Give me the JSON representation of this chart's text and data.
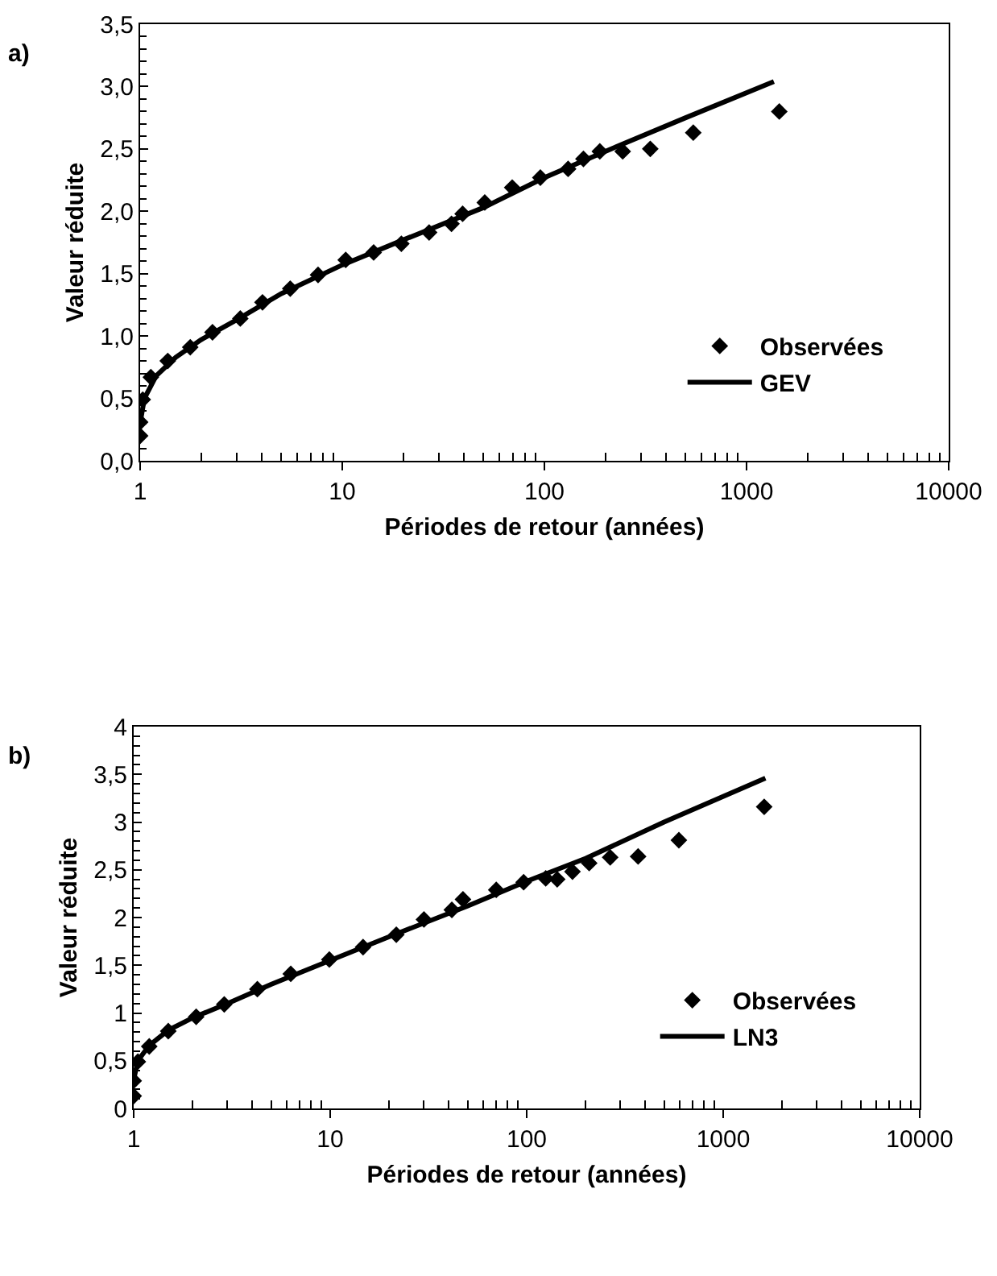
{
  "chart_data": [
    {
      "type": "scatter",
      "title": "a)",
      "xlabel": "Périodes de retour (années)",
      "ylabel": "Valeur réduite",
      "log": "x",
      "legend": "bottom right",
      "xlim": [
        1,
        10000
      ],
      "xticks": [
        1,
        10,
        100,
        1000,
        10000
      ],
      "ylim": [
        0,
        3.5
      ],
      "yticks": [
        {
          "value": 0,
          "label": "0,0"
        },
        {
          "value": 0.5,
          "label": "0,5"
        },
        {
          "value": 1,
          "label": "1,0"
        },
        {
          "value": 1.5,
          "label": "1,5"
        },
        {
          "value": 2,
          "label": "2,0"
        },
        {
          "value": 2.5,
          "label": "2,5"
        },
        {
          "value": 3,
          "label": "3,0"
        },
        {
          "value": 3.5,
          "label": "3,5"
        }
      ],
      "series": [
        {
          "name": "Observées",
          "marker": "diamond",
          "color": "#000000",
          "x": [
            1.0,
            1.0,
            1.03,
            1.13,
            1.37,
            1.77,
            2.28,
            3.13,
            4.03,
            5.53,
            7.59,
            10.4,
            14.3,
            19.6,
            26.9,
            34.7,
            39.4,
            50.7,
            69.3,
            95.5,
            131,
            156,
            188,
            244,
            334,
            545,
            1452
          ],
          "values": [
            0.2,
            0.31,
            0.49,
            0.67,
            0.8,
            0.91,
            1.03,
            1.14,
            1.27,
            1.38,
            1.49,
            1.61,
            1.67,
            1.74,
            1.83,
            1.9,
            1.98,
            2.07,
            2.19,
            2.27,
            2.34,
            2.42,
            2.48,
            2.48,
            2.5,
            2.63,
            2.8
          ]
        },
        {
          "name": "GEV",
          "type": "line",
          "marker": "none",
          "line_style": "solid",
          "color": "#000000",
          "x": [
            1,
            1.05,
            1.2,
            1.5,
            2,
            3,
            5,
            10,
            20,
            50,
            100,
            200,
            500,
            1365
          ],
          "values": [
            0.3,
            0.5,
            0.68,
            0.83,
            0.97,
            1.13,
            1.34,
            1.57,
            1.77,
            2.03,
            2.27,
            2.48,
            2.75,
            3.04
          ]
        }
      ]
    },
    {
      "type": "scatter",
      "title": "b)",
      "xlabel": "Périodes de retour (années)",
      "ylabel": "Valeur réduite",
      "log": "x",
      "legend": "bottom right",
      "xlim": [
        1,
        10000
      ],
      "xticks": [
        1,
        10,
        100,
        1000,
        10000
      ],
      "ylim": [
        0,
        4
      ],
      "yticks": [
        0,
        {
          "value": 0.5,
          "label": "0,5"
        },
        1,
        {
          "value": 1.5,
          "label": "1,5"
        },
        2,
        {
          "value": 2.5,
          "label": "2,5"
        },
        3,
        {
          "value": 3.5,
          "label": "3,5"
        },
        4
      ],
      "series": [
        {
          "name": "Observées",
          "marker": "diamond",
          "color": "#000000",
          "x": [
            1.0,
            1.0,
            1.05,
            1.2,
            1.5,
            2.08,
            2.89,
            4.26,
            6.3,
            9.9,
            14.7,
            21.7,
            30.0,
            41.6,
            47.4,
            70,
            96.5,
            125,
            143,
            171,
            208,
            266,
            369,
            595,
            1617
          ],
          "values": [
            0.13,
            0.29,
            0.49,
            0.65,
            0.81,
            0.96,
            1.09,
            1.25,
            1.41,
            1.56,
            1.69,
            1.82,
            1.98,
            2.08,
            2.19,
            2.29,
            2.37,
            2.41,
            2.4,
            2.48,
            2.57,
            2.63,
            2.64,
            2.81,
            3.16
          ]
        },
        {
          "name": "LN3",
          "type": "line",
          "marker": "none",
          "line_style": "solid",
          "color": "#000000",
          "x": [
            1,
            1.05,
            1.2,
            1.5,
            2,
            3,
            5,
            10,
            20,
            50,
            100,
            200,
            500,
            1640
          ],
          "values": [
            0.3,
            0.5,
            0.66,
            0.82,
            0.95,
            1.1,
            1.3,
            1.55,
            1.8,
            2.12,
            2.38,
            2.62,
            3.0,
            3.46
          ]
        }
      ]
    }
  ]
}
